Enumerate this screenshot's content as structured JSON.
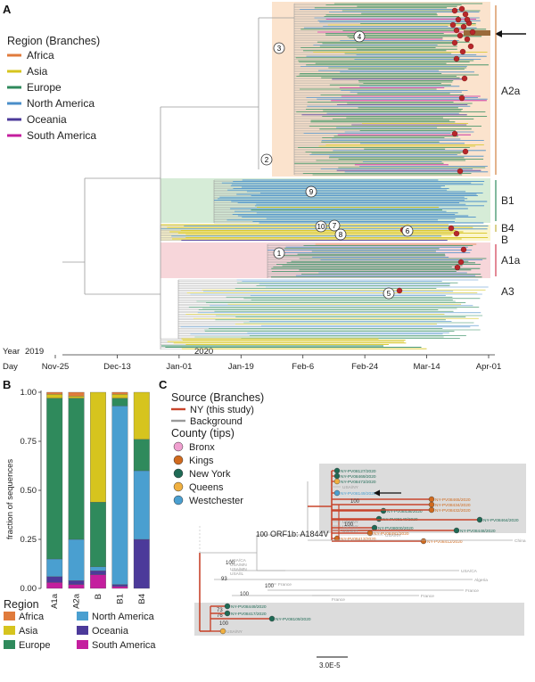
{
  "panels": {
    "A": {
      "letter": "A",
      "legend": {
        "title": "Region (Branches)",
        "items": [
          {
            "name": "Africa",
            "color": "#e07b3c"
          },
          {
            "name": "Asia",
            "color": "#d6c41e"
          },
          {
            "name": "Europe",
            "color": "#2f8a5c"
          },
          {
            "name": "North America",
            "color": "#4a8ec9"
          },
          {
            "name": "Oceania",
            "color": "#4c3a9a"
          },
          {
            "name": "South America",
            "color": "#c41e9e"
          }
        ]
      },
      "clades": [
        "A2a",
        "B1",
        "B4",
        "B",
        "A1a",
        "A3"
      ],
      "nodes": [
        "1",
        "2",
        "3",
        "4",
        "5",
        "6",
        "7",
        "8",
        "9",
        "10"
      ],
      "timeline": {
        "year_label": "Year",
        "years": [
          "2019",
          "2020"
        ],
        "day_label": "Day",
        "days": [
          "Nov-25",
          "Dec-13",
          "Jan-01",
          "Jan-19",
          "Feb-6",
          "Feb-24",
          "Mar-14",
          "Apr-01"
        ]
      }
    },
    "B": {
      "letter": "B",
      "ylabel": "fraction of sequences",
      "legend_title": "Region",
      "legend_items": [
        {
          "name": "Africa",
          "color": "#e07b3c"
        },
        {
          "name": "North America",
          "color": "#4a9fd0"
        },
        {
          "name": "Asia",
          "color": "#d6c41e"
        },
        {
          "name": "Oceania",
          "color": "#4c3a9a"
        },
        {
          "name": "Europe",
          "color": "#2f8a5c"
        },
        {
          "name": "South America",
          "color": "#c41e9e"
        }
      ]
    },
    "C": {
      "letter": "C",
      "source_title": "Source (Branches)",
      "source_items": [
        {
          "name": "NY (this study)",
          "color": "#c8452c"
        },
        {
          "name": "Background",
          "color": "#9a9a9a"
        }
      ],
      "county_title": "County (tips)",
      "county_items": [
        {
          "name": "Bronx",
          "color": "#f0a0d0"
        },
        {
          "name": "Kings",
          "color": "#d06a1e"
        },
        {
          "name": "New York",
          "color": "#1f6a55"
        },
        {
          "name": "Queens",
          "color": "#f0b040"
        },
        {
          "name": "Westchester",
          "color": "#4a9fd0"
        }
      ],
      "mutation_label": "ORF1b: A1844V",
      "mutation_support": "100",
      "bootstraps": [
        "100",
        "100",
        "100",
        "93",
        "100",
        "100",
        "73",
        "76",
        "100"
      ],
      "ny_tips": [
        "NY-PV08127/2020",
        "NY-PV08469/2020",
        "NY-PV08473/2020",
        "NY-PV08149/2020",
        "NY-PV08438/2020",
        "NY-PV08140/2020",
        "NY-PV08000/2020",
        "NY-PV08413/2020",
        "NY-PV08465/2020",
        "NY-PV08434/2020",
        "NY-PV08432/2020",
        "NY-PV08464/2020",
        "NY-PV08448/2020",
        "NY-PV08481/2020",
        "NY-PV08412/2020",
        "NY-PV08449/2020",
        "NY-PV08417/2020",
        "NY-PV08109/2020"
      ],
      "bg_tips": [
        "USA/NY",
        "USA/NY",
        "USA/NY",
        "USA/NY",
        "USA/NY",
        "USA/CA",
        "USA/MN",
        "USA/MN",
        "USA/IL",
        "USA/CA",
        "Algeria",
        "France",
        "France",
        "France",
        "France",
        "China",
        "USA/NY"
      ],
      "scale_label": "3.0E-5"
    }
  },
  "chart_data": {
    "type": "bar",
    "categories": [
      "A1a",
      "A2a",
      "B",
      "B1",
      "B4"
    ],
    "series": [
      {
        "name": "Africa",
        "values": [
          0.01,
          0.02,
          0.0,
          0.01,
          0.0
        ]
      },
      {
        "name": "Asia",
        "values": [
          0.02,
          0.01,
          0.56,
          0.02,
          0.24
        ]
      },
      {
        "name": "Europe",
        "values": [
          0.82,
          0.72,
          0.33,
          0.04,
          0.16
        ]
      },
      {
        "name": "North America",
        "values": [
          0.09,
          0.21,
          0.02,
          0.91,
          0.35
        ]
      },
      {
        "name": "Oceania",
        "values": [
          0.03,
          0.02,
          0.02,
          0.01,
          0.25
        ]
      },
      {
        "name": "South America",
        "values": [
          0.03,
          0.02,
          0.07,
          0.01,
          0.0
        ]
      }
    ],
    "stack_order": [
      "South America",
      "Oceania",
      "North America",
      "Europe",
      "Asia",
      "Africa"
    ],
    "ylabel": "fraction of sequences",
    "ylim": [
      0,
      1
    ],
    "yticks": [
      "0.00",
      "0.25",
      "0.50",
      "0.75",
      "1.00"
    ],
    "grid": false,
    "legend": "bottom"
  }
}
